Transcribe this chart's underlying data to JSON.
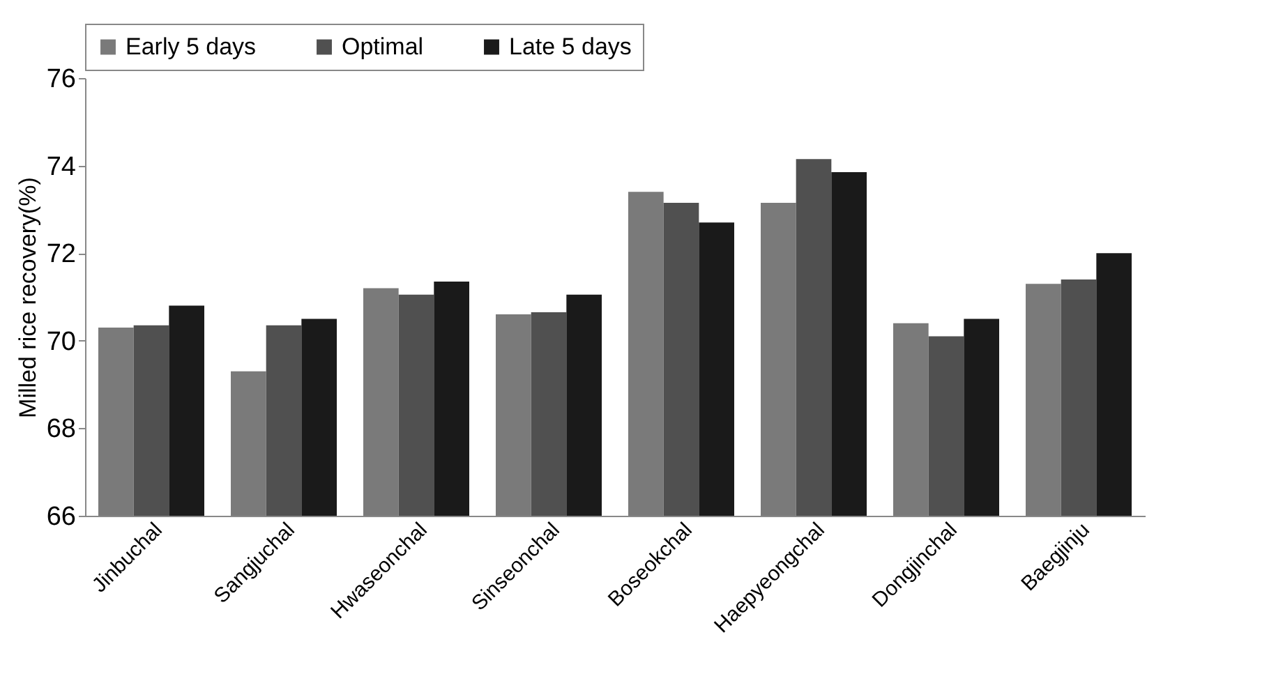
{
  "chart_data": {
    "type": "bar",
    "ylabel": "Milled rice recovery(%)",
    "categories": [
      "Jinbuchal",
      "Sangjuchal",
      "Hwaseonchal",
      "Sinseonchal",
      "Boseokchal",
      "Haepyeongchal",
      "Dongjinchal",
      "Baegjinju"
    ],
    "series": [
      {
        "name": "Early 5 days",
        "color": "#7a7a7a",
        "values": [
          70.3,
          69.3,
          71.2,
          70.6,
          73.4,
          73.15,
          70.4,
          71.3
        ]
      },
      {
        "name": "Optimal",
        "color": "#505050",
        "values": [
          70.35,
          70.35,
          71.05,
          70.65,
          73.15,
          74.15,
          70.1,
          71.4
        ]
      },
      {
        "name": "Late 5 days",
        "color": "#1a1a1a",
        "values": [
          70.8,
          70.5,
          71.35,
          71.05,
          72.7,
          73.85,
          70.5,
          72.0
        ]
      }
    ],
    "ylim": [
      66,
      76
    ],
    "yticks": [
      66,
      68,
      70,
      72,
      74,
      76
    ],
    "grid": false,
    "legend": "top"
  }
}
